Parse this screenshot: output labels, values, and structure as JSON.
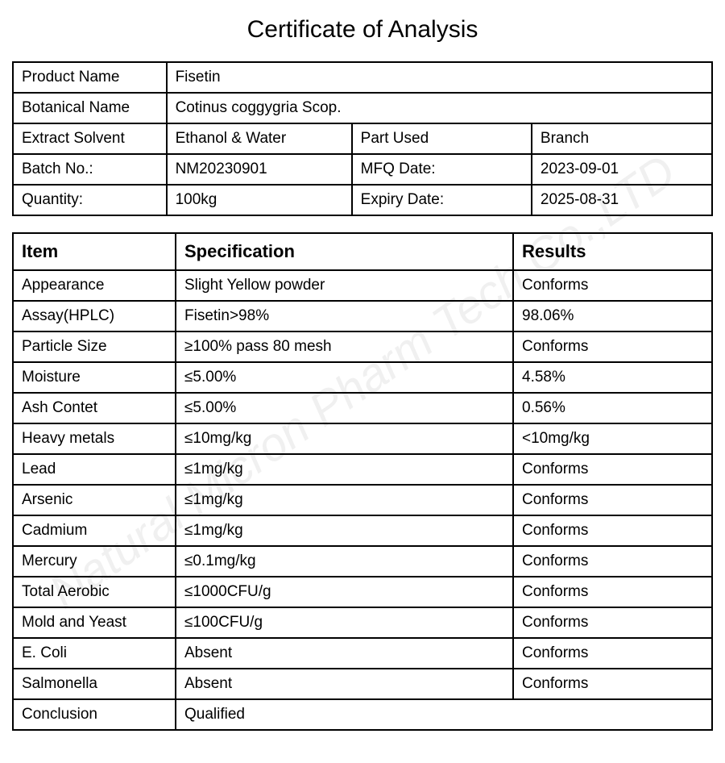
{
  "title": "Certificate of Analysis",
  "watermark": "Natural Micron Pharm Tech Co.,LTD",
  "info": {
    "product_name_label": "Product Name",
    "product_name": "Fisetin",
    "botanical_name_label": "Botanical Name",
    "botanical_name": "Cotinus coggygria Scop.",
    "extract_solvent_label": "Extract Solvent",
    "extract_solvent": "Ethanol & Water",
    "part_used_label": "Part Used",
    "part_used": "Branch",
    "batch_no_label": "Batch No.:",
    "batch_no": "NM20230901",
    "mfq_date_label": "MFQ Date:",
    "mfq_date": "2023-09-01",
    "quantity_label": "Quantity:",
    "quantity": "100kg",
    "expiry_date_label": "Expiry Date:",
    "expiry_date": "2025-08-31"
  },
  "results_header": {
    "item": "Item",
    "specification": "Specification",
    "results": "Results"
  },
  "results": [
    {
      "item": "Appearance",
      "spec": "Slight Yellow powder",
      "result": "Conforms"
    },
    {
      "item": "Assay(HPLC)",
      "spec": "Fisetin>98%",
      "result": "98.06%"
    },
    {
      "item": "Particle Size",
      "spec": "≥100% pass 80 mesh",
      "result": "Conforms"
    },
    {
      "item": "Moisture",
      "spec": "≤5.00%",
      "result": "4.58%"
    },
    {
      "item": "Ash Contet",
      "spec": "≤5.00%",
      "result": "0.56%"
    },
    {
      "item": "Heavy metals",
      "spec": "≤10mg/kg",
      "result": "<10mg/kg"
    },
    {
      "item": "Lead",
      "spec": "≤1mg/kg",
      "result": "Conforms"
    },
    {
      "item": "Arsenic",
      "spec": "≤1mg/kg",
      "result": "Conforms"
    },
    {
      "item": "Cadmium",
      "spec": "≤1mg/kg",
      "result": "Conforms"
    },
    {
      "item": "Mercury",
      "spec": "≤0.1mg/kg",
      "result": "Conforms"
    },
    {
      "item": "Total Aerobic",
      "spec": "≤1000CFU/g",
      "result": "Conforms"
    },
    {
      "item": "Mold and Yeast",
      "spec": "≤100CFU/g",
      "result": "Conforms"
    },
    {
      "item": "E. Coli",
      "spec": "Absent",
      "result": "Conforms"
    },
    {
      "item": "Salmonella",
      "spec": "Absent",
      "result": "Conforms"
    },
    {
      "item": "Conclusion",
      "spec": "Qualified",
      "result": ""
    }
  ],
  "styling": {
    "border_color": "#000000",
    "background_color": "#ffffff",
    "title_fontsize": 30,
    "cell_fontsize": 19,
    "header_fontsize": 22,
    "watermark_opacity": 0.06,
    "watermark_fontsize": 58,
    "watermark_rotation_deg": -35
  }
}
